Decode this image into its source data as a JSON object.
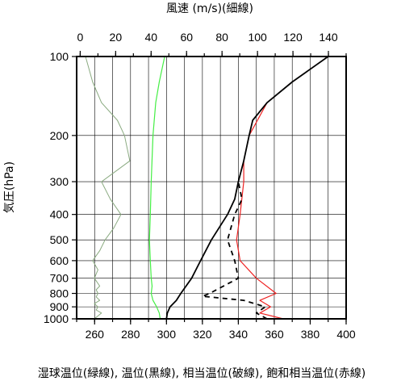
{
  "chart_data": {
    "type": "line",
    "top_axis_label": "風速 (m/s)(細線)",
    "bottom_axis_label": "湿球温位(緑線), 温位(黒線), 相当温位(破線), 飽和相当温位(赤線)",
    "y_axis_label": "気圧(hPa)",
    "y_scale": "log",
    "y_reversed": true,
    "ylim": [
      1000,
      100
    ],
    "y_ticks": [
      100,
      200,
      300,
      400,
      500,
      600,
      700,
      800,
      900,
      1000
    ],
    "xlim_bottom": [
      250,
      400
    ],
    "x_ticks_bottom": [
      260,
      280,
      300,
      320,
      340,
      360,
      380,
      400
    ],
    "xlim_top": [
      -2,
      150
    ],
    "x_ticks_top": [
      0,
      20,
      40,
      60,
      80,
      100,
      120,
      140
    ],
    "grid": true,
    "colors": {
      "wind": "#8aaa80",
      "wet_bulb": "#44ee44",
      "potential": "#000000",
      "equivalent": "#000000",
      "saturated": "#ee2222"
    },
    "wind_speed": {
      "p": [
        1000,
        950,
        925,
        900,
        875,
        850,
        825,
        800,
        775,
        750,
        700,
        650,
        600,
        550,
        500,
        450,
        400,
        350,
        300,
        250,
        200,
        175,
        150,
        125,
        100
      ],
      "v": [
        8,
        12,
        9,
        10,
        8,
        11,
        9,
        10,
        9,
        11,
        8,
        10,
        7,
        11,
        14,
        19,
        23,
        17,
        12,
        28,
        25,
        21,
        12,
        7,
        3
      ]
    },
    "wet_bulb_potential": {
      "p": [
        1000,
        950,
        900,
        850,
        800,
        750,
        700,
        600,
        500,
        400,
        300,
        200,
        150,
        125,
        100
      ],
      "t": [
        296.5,
        296,
        294.5,
        292.5,
        291.5,
        292,
        291.5,
        291,
        290.5,
        291,
        291.5,
        292.5,
        294,
        296,
        299
      ]
    },
    "potential_temperature": {
      "p": [
        1000,
        950,
        900,
        850,
        800,
        700,
        600,
        500,
        400,
        350,
        300,
        250,
        200,
        175,
        150,
        125,
        100
      ],
      "t": [
        300,
        300.5,
        302,
        305.5,
        308,
        314,
        319,
        325,
        334,
        338,
        340,
        343,
        346,
        348,
        356,
        370,
        390
      ]
    },
    "equivalent_potential_temperature": {
      "p": [
        1000,
        950,
        900,
        850,
        820,
        800,
        700,
        600,
        500,
        400,
        350,
        300
      ],
      "t": [
        356,
        350,
        355,
        343,
        320,
        324,
        340,
        338,
        334,
        338,
        342,
        340
      ]
    },
    "saturated_equivalent_potential_temperature": {
      "p": [
        1000,
        950,
        900,
        850,
        800,
        700,
        600,
        500,
        400,
        300,
        250,
        200,
        150,
        125,
        100
      ],
      "t": [
        365,
        352,
        358,
        352,
        361,
        350,
        341,
        339,
        341,
        343,
        343,
        346,
        356,
        370,
        390
      ]
    }
  }
}
